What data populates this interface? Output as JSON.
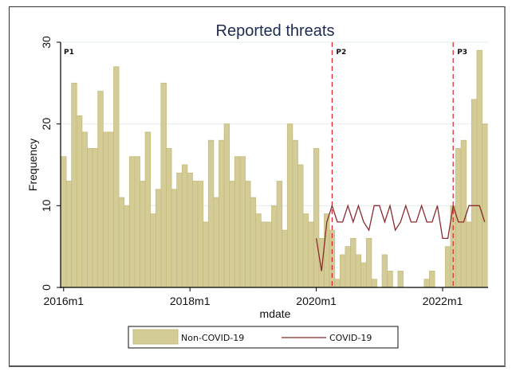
{
  "chart_data": {
    "type": "bar",
    "title": "Reported threats",
    "xlabel": "mdate",
    "ylabel": "Frequency",
    "ylim": [
      0,
      30
    ],
    "yticks": [
      0,
      10,
      20,
      30
    ],
    "grid": true,
    "x_start": "2016m1",
    "x_end": "2022m9",
    "xticks": [
      {
        "label": "2016m1",
        "index": 0
      },
      {
        "label": "2018m1",
        "index": 24
      },
      {
        "label": "2020m1",
        "index": 48
      },
      {
        "label": "2022m1",
        "index": 72
      }
    ],
    "series": [
      {
        "name": "Non-COVID-19",
        "type": "bar",
        "color": "#d4cc96",
        "edge_color": "#c5bc7c",
        "values": [
          16,
          13,
          25,
          21,
          19,
          17,
          17,
          24,
          19,
          19,
          27,
          11,
          10,
          16,
          16,
          13,
          19,
          9,
          12,
          25,
          17,
          12,
          14,
          15,
          14,
          13,
          13,
          8,
          18,
          11,
          18,
          20,
          13,
          16,
          16,
          13,
          11,
          9,
          8,
          8,
          10,
          13,
          7,
          20,
          18,
          15,
          9,
          8,
          17,
          6,
          9,
          7,
          1,
          4,
          5,
          6,
          4,
          3,
          6,
          1,
          0,
          4,
          2,
          0,
          2,
          0,
          0,
          0,
          0,
          1,
          2,
          0,
          0,
          5,
          10,
          17,
          18,
          8,
          23,
          29,
          20
        ]
      },
      {
        "name": "COVID-19",
        "type": "line",
        "color": "#8b2a30",
        "start_index": 48,
        "values": [
          6,
          2,
          8,
          10,
          8,
          8,
          10,
          8,
          10,
          8,
          7,
          10,
          10,
          8,
          10,
          7,
          8,
          10,
          8,
          8,
          10,
          8,
          8,
          10,
          6,
          6,
          10,
          8,
          8,
          10,
          10,
          10,
          8
        ]
      }
    ],
    "vlines": [
      {
        "label": "P2",
        "index": 51,
        "color": "#e0202a",
        "style": "dashed"
      },
      {
        "label": "P3",
        "index": 74,
        "color": "#e0202a",
        "style": "dashed"
      }
    ],
    "period_labels": [
      {
        "label": "P1",
        "index": 0
      },
      {
        "label": "P2",
        "index": 51
      },
      {
        "label": "P3",
        "index": 74
      }
    ],
    "legend": {
      "position": "bottom",
      "entries": [
        "Non-COVID-19",
        "COVID-19"
      ]
    }
  }
}
